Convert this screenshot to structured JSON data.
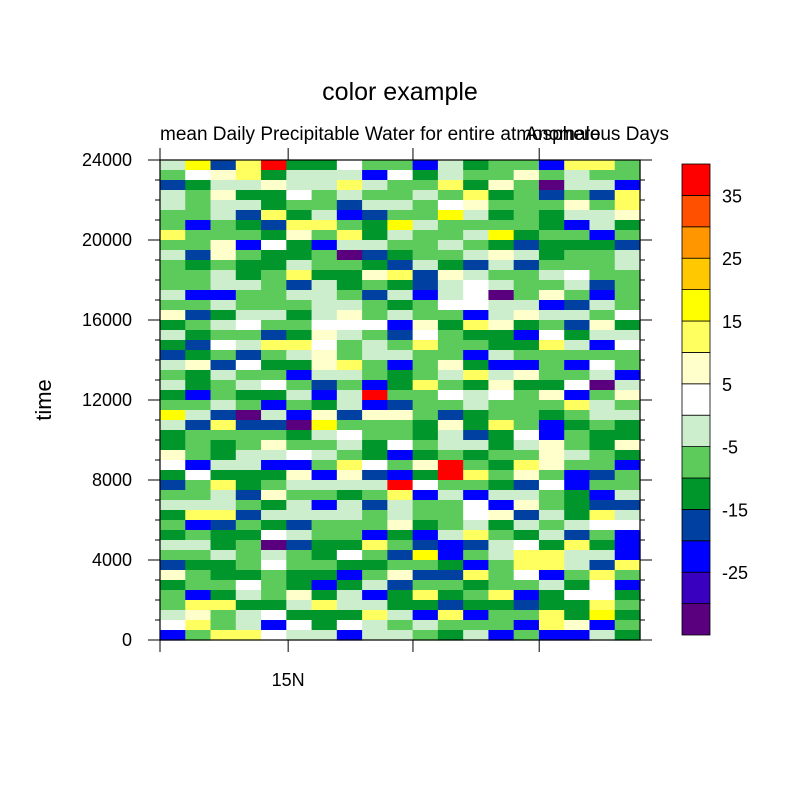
{
  "chart_data": {
    "type": "heatmap",
    "title": "color example",
    "subtitle_left": "mean Daily Precipitable Water for entire atmosphere",
    "subtitle_right": "Anomalous Days",
    "ylabel": "time",
    "xlabel": "",
    "ylim": [
      0,
      24000
    ],
    "y_ticks": [
      "0",
      "4000",
      "8000",
      "12000",
      "16000",
      "20000",
      "24000"
    ],
    "x_tick_labels": [
      "15N"
    ],
    "grid": false,
    "legend": "right",
    "colorbar_labels": [
      "-25",
      "-15",
      "-5",
      "5",
      "15",
      "25",
      "35"
    ],
    "colorbar_colors": [
      "#5A007F",
      "#3A00C0",
      "#0000FF",
      "#0040A0",
      "#00962B",
      "#5CCB5C",
      "#CCEECC",
      "#FFFFFF",
      "#FFFFCC",
      "#FFFF60",
      "#FFFF00",
      "#FFC800",
      "#FF9600",
      "#FF5000",
      "#FF0000"
    ],
    "n_columns": 19,
    "n_rows": 48
  }
}
